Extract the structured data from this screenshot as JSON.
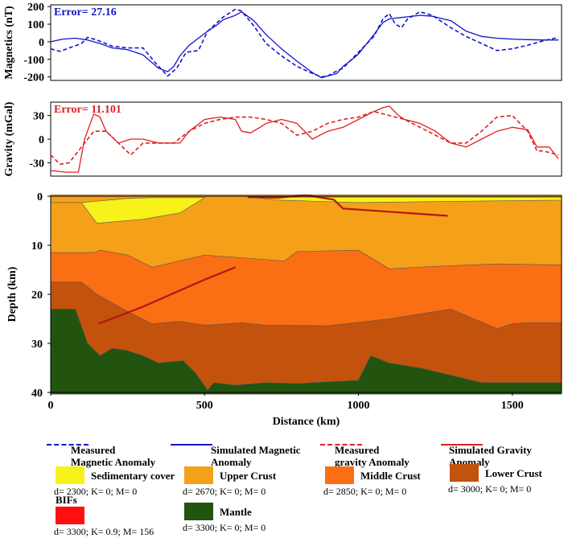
{
  "chart_data": [
    {
      "type": "line",
      "panel": "magnetics",
      "ylabel": "Magnetics (nT)",
      "error_label": "Error= 27.16",
      "ylim": [
        -220,
        210
      ],
      "yticks": [
        200,
        100,
        0,
        -100,
        -200
      ],
      "xlim": [
        0,
        1660
      ],
      "series": [
        {
          "name": "Measured Magnetic Anomaly",
          "style": "dashed",
          "color": "#1515c8",
          "x": [
            0,
            30,
            60,
            100,
            120,
            150,
            200,
            250,
            300,
            340,
            380,
            410,
            440,
            480,
            510,
            560,
            600,
            620,
            660,
            700,
            750,
            800,
            850,
            880,
            900,
            920,
            950,
            1000,
            1050,
            1080,
            1100,
            1120,
            1140,
            1160,
            1200,
            1240,
            1300,
            1350,
            1400,
            1450,
            1500,
            1550,
            1600,
            1650
          ],
          "y": [
            -40,
            -55,
            -35,
            -10,
            25,
            10,
            -25,
            -35,
            -35,
            -120,
            -195,
            -150,
            -60,
            -50,
            60,
            140,
            185,
            175,
            90,
            -10,
            -80,
            -140,
            -180,
            -200,
            -195,
            -175,
            -150,
            -60,
            30,
            130,
            160,
            100,
            80,
            130,
            170,
            150,
            80,
            30,
            -10,
            -50,
            -40,
            -20,
            5,
            25
          ]
        },
        {
          "name": "Simulated Magnetic Anomaly",
          "style": "solid",
          "color": "#1515c8",
          "x": [
            0,
            40,
            80,
            120,
            160,
            200,
            250,
            300,
            350,
            380,
            400,
            420,
            450,
            480,
            510,
            540,
            560,
            600,
            620,
            660,
            700,
            750,
            800,
            850,
            880,
            900,
            930,
            950,
            980,
            1000,
            1050,
            1080,
            1100,
            1150,
            1200,
            1240,
            1300,
            1350,
            1400,
            1450,
            1500,
            1550,
            1600,
            1650
          ],
          "y": [
            0,
            15,
            20,
            10,
            -10,
            -35,
            -45,
            -75,
            -150,
            -170,
            -140,
            -80,
            -20,
            20,
            60,
            95,
            125,
            150,
            170,
            120,
            40,
            -40,
            -110,
            -175,
            -205,
            -195,
            -180,
            -140,
            -100,
            -70,
            40,
            110,
            130,
            140,
            150,
            145,
            120,
            60,
            30,
            20,
            15,
            12,
            10,
            10
          ]
        }
      ]
    },
    {
      "type": "line",
      "panel": "gravity",
      "ylabel": "Gravity (mGal)",
      "error_label": "Error= 11.101",
      "ylim": [
        -47,
        47
      ],
      "yticks": [
        30,
        0,
        -30
      ],
      "xlim": [
        0,
        1660
      ],
      "series": [
        {
          "name": "Measured gravity Anomaly",
          "style": "dashed",
          "color": "#e02020",
          "x": [
            0,
            30,
            60,
            100,
            140,
            180,
            220,
            260,
            300,
            350,
            400,
            450,
            500,
            550,
            600,
            650,
            700,
            750,
            800,
            850,
            900,
            950,
            1000,
            1050,
            1100,
            1150,
            1200,
            1250,
            1300,
            1350,
            1400,
            1450,
            1500,
            1550,
            1580,
            1600,
            1650
          ],
          "y": [
            -20,
            -32,
            -30,
            -10,
            10,
            10,
            -5,
            -20,
            -5,
            -5,
            -5,
            10,
            20,
            25,
            28,
            28,
            25,
            20,
            5,
            10,
            20,
            25,
            28,
            35,
            30,
            25,
            15,
            5,
            -5,
            -5,
            10,
            28,
            30,
            10,
            -15,
            -15,
            -20
          ]
        },
        {
          "name": "Simulated Gravity Anomaly",
          "style": "solid",
          "color": "#e02020",
          "x": [
            0,
            50,
            90,
            110,
            140,
            160,
            180,
            220,
            260,
            300,
            350,
            380,
            420,
            450,
            500,
            550,
            600,
            620,
            650,
            680,
            700,
            750,
            800,
            850,
            900,
            950,
            1000,
            1050,
            1080,
            1100,
            1130,
            1150,
            1200,
            1250,
            1300,
            1350,
            1400,
            1450,
            1500,
            1550,
            1580,
            1620,
            1650
          ],
          "y": [
            -40,
            -42,
            -42,
            0,
            32,
            28,
            10,
            -5,
            0,
            0,
            -5,
            -5,
            -5,
            10,
            25,
            28,
            25,
            10,
            8,
            15,
            20,
            25,
            20,
            0,
            10,
            15,
            25,
            35,
            40,
            42,
            30,
            25,
            20,
            10,
            -5,
            -10,
            0,
            10,
            15,
            12,
            -10,
            -10,
            -25
          ]
        }
      ]
    },
    {
      "type": "area",
      "panel": "geological-section",
      "xlabel": "Distance (km)",
      "ylabel": "Depth (km)",
      "xlim": [
        0,
        1660
      ],
      "ylim": [
        0,
        40
      ],
      "xticks": [
        0,
        500,
        1000,
        1500
      ],
      "yticks": [
        0,
        10,
        20,
        30,
        40
      ],
      "layers": [
        {
          "name": "Upper Crust",
          "color": "#f5a019",
          "top_x": [
            0,
            1660
          ],
          "top_y": [
            -0.3,
            -0.3
          ]
        },
        {
          "name": "Sedimentary cover",
          "color": "#f7f21a",
          "top_x": [
            0,
            100,
            240,
            330,
            480,
            500
          ],
          "top_y": [
            1.3,
            1.3,
            0.5,
            0.3,
            0.3,
            0.2
          ],
          "bottom_x": [
            0,
            100,
            150,
            300,
            420,
            500
          ],
          "bottom_y": [
            1.3,
            1.3,
            5.5,
            4.7,
            3.4,
            0.3
          ],
          "top_x2": [
            680,
            700,
            1660
          ],
          "top_y2": [
            0.3,
            0.2,
            0.2
          ],
          "bottom_x2": [
            680,
            750,
            1000,
            1100,
            1660
          ],
          "bottom_y2": [
            0.4,
            0.8,
            1.3,
            1.2,
            0.8
          ]
        },
        {
          "name": "Middle Crust",
          "color": "#fa6e14",
          "top_x": [
            0,
            140,
            160,
            250,
            330,
            500,
            760,
            800,
            1000,
            1100,
            1250,
            1450,
            1660
          ],
          "top_y": [
            11.5,
            11.5,
            11.0,
            12.0,
            14.5,
            12.0,
            13.2,
            11.3,
            11.0,
            14.8,
            14.3,
            13.8,
            14.0
          ]
        },
        {
          "name": "Lower Crust",
          "color": "#c3520d",
          "top_x": [
            0,
            100,
            150,
            250,
            330,
            420,
            500,
            620,
            700,
            900,
            1100,
            1300,
            1450,
            1500,
            1550,
            1660
          ],
          "top_y": [
            17.5,
            17.5,
            20.0,
            23.5,
            26.0,
            25.5,
            26.3,
            25.8,
            26.3,
            26.4,
            25.0,
            23.0,
            27.0,
            26.0,
            25.8,
            25.8
          ]
        },
        {
          "name": "Mantle",
          "color": "#225410",
          "top_x": [
            0,
            80,
            120,
            160,
            200,
            250,
            300,
            350,
            430,
            470,
            510,
            530,
            600,
            700,
            800,
            1000,
            1040,
            1100,
            1200,
            1300,
            1400,
            1660
          ],
          "top_y": [
            23.0,
            23.0,
            30.0,
            32.5,
            31.0,
            31.5,
            32.5,
            34.0,
            33.5,
            36.0,
            39.5,
            38.0,
            38.5,
            38.0,
            38.2,
            37.5,
            32.5,
            34.0,
            35.0,
            36.5,
            38.0,
            38.0
          ]
        }
      ],
      "bifs": [
        {
          "x": [
            155,
            300,
            500,
            600
          ],
          "y": [
            26.0,
            22.5,
            17.0,
            14.5
          ]
        },
        {
          "x": [
            640,
            740,
            830,
            920,
            950,
            1290
          ],
          "y": [
            0.2,
            0.3,
            -0.2,
            0.7,
            2.5,
            4.0
          ]
        }
      ]
    }
  ],
  "legend": {
    "lines": [
      {
        "line1": "Measured",
        "line2": "Magnetic Anomaly",
        "style": "dashed",
        "color": "#1515c8"
      },
      {
        "line1": "Simulated Magnetic",
        "line2": "Anomaly",
        "style": "solid",
        "color": "#1515c8"
      },
      {
        "line1": "Measured",
        "line2": "gravity Anomaly",
        "style": "dashed",
        "color": "#e02020"
      },
      {
        "line1": "Simulated Gravity",
        "line2": "Anomaly",
        "style": "solid",
        "color": "#e02020"
      }
    ],
    "rocks": [
      {
        "name": "Sedimentary cover",
        "props": "d= 2300; K= 0; M= 0",
        "color": "#f7f21a"
      },
      {
        "name": "Upper Crust",
        "props": "d= 2670; K= 0; M= 0",
        "color": "#f5a019"
      },
      {
        "name": "Middle Crust",
        "props": "d= 2850; K= 0; M= 0",
        "color": "#fa6e14"
      },
      {
        "name": "Lower Crust",
        "props": "d= 3000; K= 0; M= 0",
        "color": "#c3520d"
      },
      {
        "name": "BIFs",
        "props": "d= 3300; K= 0.9; M= 156",
        "color": "#ff1010"
      },
      {
        "name": "Mantle",
        "props": "d= 3300; K= 0; M= 0",
        "color": "#225410"
      }
    ]
  }
}
